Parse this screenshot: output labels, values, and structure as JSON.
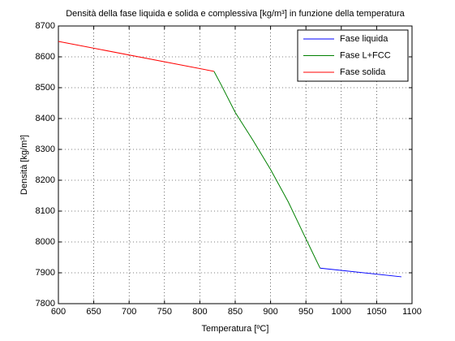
{
  "chart_data": {
    "type": "line",
    "title": "Densità della fase liquida e solida e complessiva [kg/m³] in funzione della temperatura",
    "x_label": "Temperatura [ºC]",
    "y_label": "Densità [kg/m³]",
    "series": [
      {
        "name": "Fase liquida",
        "color": "#0000ff",
        "x": [
          970,
          1085
        ],
        "values": [
          7915,
          7887
        ]
      },
      {
        "name": "Fase L+FCC",
        "color": "#008000",
        "x": [
          820,
          830,
          850,
          875,
          900,
          925,
          950,
          970
        ],
        "values": [
          8553,
          8510,
          8420,
          8330,
          8235,
          8130,
          8010,
          7915
        ]
      },
      {
        "name": "Fase solida",
        "color": "#ff0000",
        "x": [
          600,
          820
        ],
        "values": [
          8650,
          8553
        ]
      }
    ],
    "xlim": [
      600,
      1100
    ],
    "xticks": [
      600,
      650,
      700,
      750,
      800,
      850,
      900,
      950,
      1000,
      1050,
      1100
    ],
    "ylim": [
      7800,
      8700
    ],
    "yticks": [
      7800,
      7900,
      8000,
      8100,
      8200,
      8300,
      8400,
      8500,
      8600,
      8700
    ],
    "grid": true,
    "legend": "northeast"
  }
}
